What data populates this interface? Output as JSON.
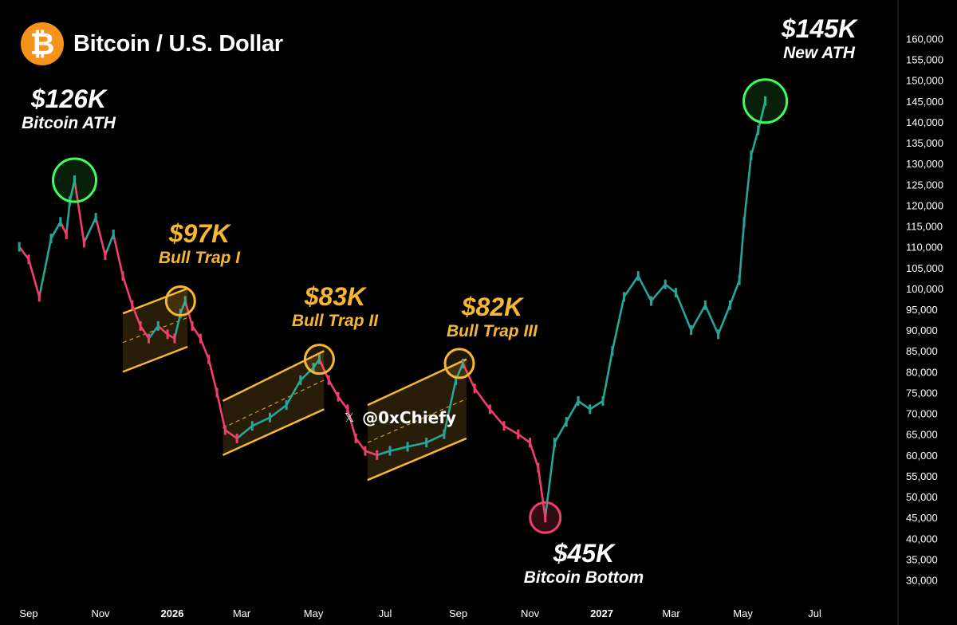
{
  "header": {
    "logo_glyph": "₿",
    "title": "Bitcoin / U.S. Dollar",
    "logo_color": "#f7931a"
  },
  "watermark": {
    "icon": "x-logo-icon",
    "glyph": "𝕏",
    "handle": "@0xChiefy"
  },
  "annotations": [
    {
      "value": "$126K",
      "label": "Bitcoin ATH",
      "style": "white"
    },
    {
      "value": "$97K",
      "label": "Bull Trap I",
      "style": "gold"
    },
    {
      "value": "$83K",
      "label": "Bull Trap II",
      "style": "gold"
    },
    {
      "value": "$82K",
      "label": "Bull Trap III",
      "style": "gold"
    },
    {
      "value": "$45K",
      "label": "Bitcoin Bottom",
      "style": "white"
    },
    {
      "value": "$145K",
      "label": "New ATH",
      "style": "white"
    }
  ],
  "colors": {
    "up": "#26a69a",
    "down": "#ef3f6b",
    "channel": "#f7b731",
    "ath_circle": "#3dff5c",
    "trap_circle": "#f7b731",
    "bottom_circle": "#ef3f6b",
    "axis_text": "#ffffff"
  },
  "chart_data": {
    "type": "line",
    "title": "Bitcoin / U.S. Dollar",
    "xlabel": "",
    "ylabel": "",
    "ylim": [
      28000,
      162000
    ],
    "y_ticks": [
      "160,000",
      "155,000",
      "150,000",
      "145,000",
      "140,000",
      "135,000",
      "130,000",
      "125,000",
      "120,000",
      "115,000",
      "110,000",
      "105,000",
      "100,000",
      "95,000",
      "90,000",
      "85,000",
      "80,000",
      "75,000",
      "70,000",
      "65,000",
      "60,000",
      "55,000",
      "50,000",
      "45,000",
      "40,000",
      "35,000",
      "30,000"
    ],
    "x_ticks": [
      "Sep",
      "Nov",
      "2026",
      "Mar",
      "May",
      "Jul",
      "Sep",
      "Nov",
      "2027",
      "Mar",
      "May",
      "Jul"
    ],
    "series": [
      {
        "x": [
          "2025-08-24",
          "2025-09-01",
          "2025-09-10",
          "2025-09-20",
          "2025-09-28",
          "2025-10-03",
          "2025-10-06",
          "2025-10-10",
          "2025-10-18",
          "2025-10-28",
          "2025-11-05",
          "2025-11-12",
          "2025-11-20",
          "2025-11-28",
          "2025-12-05",
          "2025-12-12",
          "2025-12-20",
          "2025-12-28",
          "2026-01-03",
          "2026-01-08",
          "2026-01-12",
          "2026-01-18",
          "2026-01-25",
          "2026-02-01",
          "2026-02-08",
          "2026-02-15",
          "2026-02-25",
          "2026-03-10",
          "2026-03-25",
          "2026-04-08",
          "2026-04-20",
          "2026-05-01",
          "2026-05-06",
          "2026-05-14",
          "2026-05-22",
          "2026-05-30",
          "2026-06-06",
          "2026-06-14",
          "2026-06-24",
          "2026-07-05",
          "2026-07-20",
          "2026-08-05",
          "2026-08-20",
          "2026-08-30",
          "2026-09-05",
          "2026-09-15",
          "2026-09-28",
          "2026-10-10",
          "2026-10-22",
          "2026-11-01",
          "2026-11-08",
          "2026-11-14",
          "2026-11-22",
          "2026-12-02",
          "2026-12-12",
          "2026-12-22",
          "2027-01-02",
          "2027-01-10",
          "2027-01-20",
          "2027-02-01",
          "2027-02-12",
          "2027-02-24",
          "2027-03-05",
          "2027-03-18",
          "2027-03-30",
          "2027-04-10",
          "2027-04-20",
          "2027-04-28",
          "2027-05-02",
          "2027-05-08",
          "2027-05-14",
          "2027-05-20"
        ],
        "values": [
          110000,
          107000,
          98000,
          112000,
          116000,
          113000,
          121000,
          126000,
          111000,
          117000,
          108000,
          113000,
          103000,
          96000,
          91000,
          88000,
          91000,
          89000,
          88000,
          94000,
          97000,
          91000,
          88000,
          83000,
          75000,
          66000,
          64000,
          67000,
          69000,
          72000,
          78000,
          81000,
          83000,
          78000,
          74000,
          71000,
          64000,
          61000,
          60000,
          61000,
          62000,
          63000,
          65000,
          78000,
          82000,
          76000,
          71000,
          67000,
          65000,
          63000,
          57000,
          45000,
          63000,
          68000,
          73000,
          71000,
          73000,
          85000,
          98000,
          103000,
          97000,
          101000,
          99000,
          90000,
          96000,
          89000,
          96000,
          102000,
          116000,
          132000,
          138000,
          145000
        ]
      }
    ],
    "channels": [
      {
        "x": [
          "2025-11-20",
          "2026-01-14"
        ],
        "upper": [
          94000,
          100000
        ],
        "lower": [
          80000,
          86000
        ]
      },
      {
        "x": [
          "2026-02-13",
          "2026-05-10"
        ],
        "upper": [
          73000,
          85000
        ],
        "lower": [
          60000,
          71000
        ]
      },
      {
        "x": [
          "2026-06-16",
          "2026-09-08"
        ],
        "upper": [
          72000,
          83000
        ],
        "lower": [
          54000,
          64000
        ]
      }
    ],
    "markers": [
      {
        "x": "2025-10-10",
        "y": 126000,
        "kind": "ath"
      },
      {
        "x": "2026-01-08",
        "y": 97000,
        "kind": "trap"
      },
      {
        "x": "2026-05-06",
        "y": 83000,
        "kind": "trap"
      },
      {
        "x": "2026-09-02",
        "y": 82000,
        "kind": "trap"
      },
      {
        "x": "2026-11-14",
        "y": 45000,
        "kind": "bottom"
      },
      {
        "x": "2027-05-20",
        "y": 145000,
        "kind": "ath"
      }
    ]
  }
}
